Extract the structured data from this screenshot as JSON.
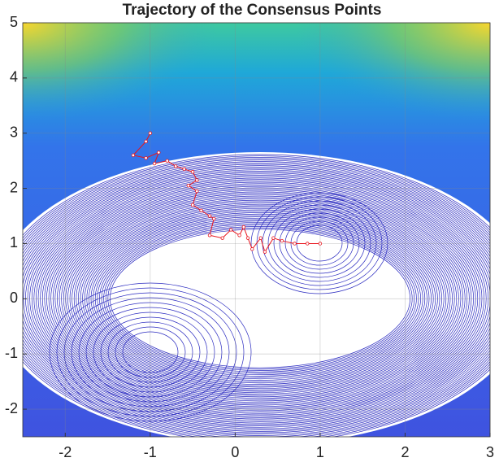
{
  "chart_data": {
    "type": "line",
    "title": "Trajectory of the Consensus Points",
    "x": [
      -1,
      -1.05,
      -1.2,
      -1.05,
      -0.9,
      -0.95,
      -0.8,
      -0.7,
      -0.6,
      -0.5,
      -0.45,
      -0.55,
      -0.45,
      -0.5,
      -0.4,
      -0.3,
      -0.25,
      -0.3,
      -0.15,
      -0.05,
      0.05,
      0.1,
      0.15,
      0.2,
      0.3,
      0.35,
      0.45,
      0.55,
      0.7,
      0.85,
      1.0
    ],
    "series": [
      {
        "color": "#e8141c",
        "values": [
          3,
          2.85,
          2.6,
          2.55,
          2.65,
          2.45,
          2.5,
          2.4,
          2.35,
          2.3,
          2.15,
          2.05,
          1.95,
          1.7,
          1.6,
          1.5,
          1.45,
          1.15,
          1.1,
          1.25,
          1.15,
          1.3,
          1.1,
          0.9,
          1.1,
          0.85,
          1.1,
          1.05,
          1.0,
          1.0,
          1.0
        ]
      }
    ],
    "xlim": [
      -2.5,
      3
    ],
    "ylim": [
      -2.5,
      5
    ],
    "xticks": [
      -2,
      -1,
      0,
      1,
      2,
      3
    ],
    "yticks": [
      -2,
      -1,
      0,
      1,
      2,
      3,
      4,
      5
    ],
    "grid": true
  }
}
